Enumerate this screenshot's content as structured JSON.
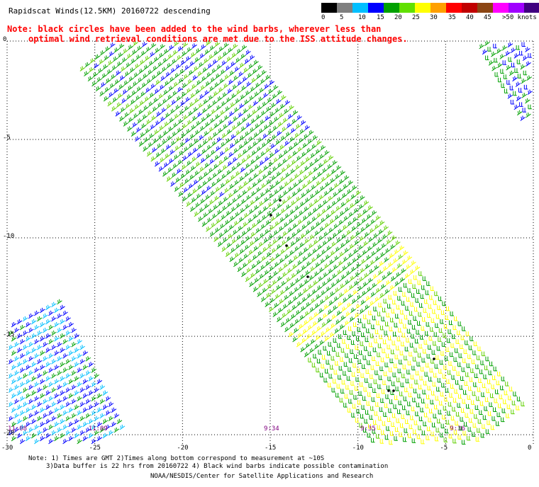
{
  "title": "Rapidscat Winds(12.5KM) 20160722 descending",
  "note_line1": "Note: black circles have been added to the wind barbs, wherever less than",
  "note_line2": "optimal wind retrieval conditions are met due to the ISS attitude changes.",
  "legend": {
    "colors": [
      "#000000",
      "#7f7f7f",
      "#00bfff",
      "#0000ff",
      "#00a000",
      "#60e000",
      "#ffff00",
      "#ffa000",
      "#ff0000",
      "#c00000",
      "#8b4513",
      "#ff00ff",
      "#a000ff",
      "#400080"
    ],
    "labels": [
      "0",
      "5",
      "10",
      "15",
      "20",
      "25",
      "30",
      "35",
      "40",
      "45",
      ">50 knots"
    ]
  },
  "map": {
    "lat_labels": [
      "0",
      "-5",
      "-10",
      "-15",
      "-20"
    ],
    "lon_labels": [
      "-30",
      "-25",
      "-20",
      "-15",
      "-10",
      "-5",
      "0"
    ],
    "lat_range": [
      -20.5,
      0
    ],
    "lon_range": [
      -30,
      0
    ]
  },
  "time_labels": [
    {
      "text": "11:08",
      "lon": -29.8
    },
    {
      "text": "11:09",
      "lon": -25.2
    },
    {
      "text": "9:34",
      "lon": -15.2
    },
    {
      "text": "9:35",
      "lon": -9.7
    },
    {
      "text": "9:36",
      "lon": -4.6
    }
  ],
  "footnotes": {
    "line1": "Note: 1) Times are GMT 2)Times along bottom correspond to measurement at ~10S",
    "line2": "3)Data buffer is 22 hrs from 20160722 4) Black wind barbs indicate possible contamination",
    "line3": "NOAA/NESDIS/Center for Satellite Applications and Research"
  }
}
